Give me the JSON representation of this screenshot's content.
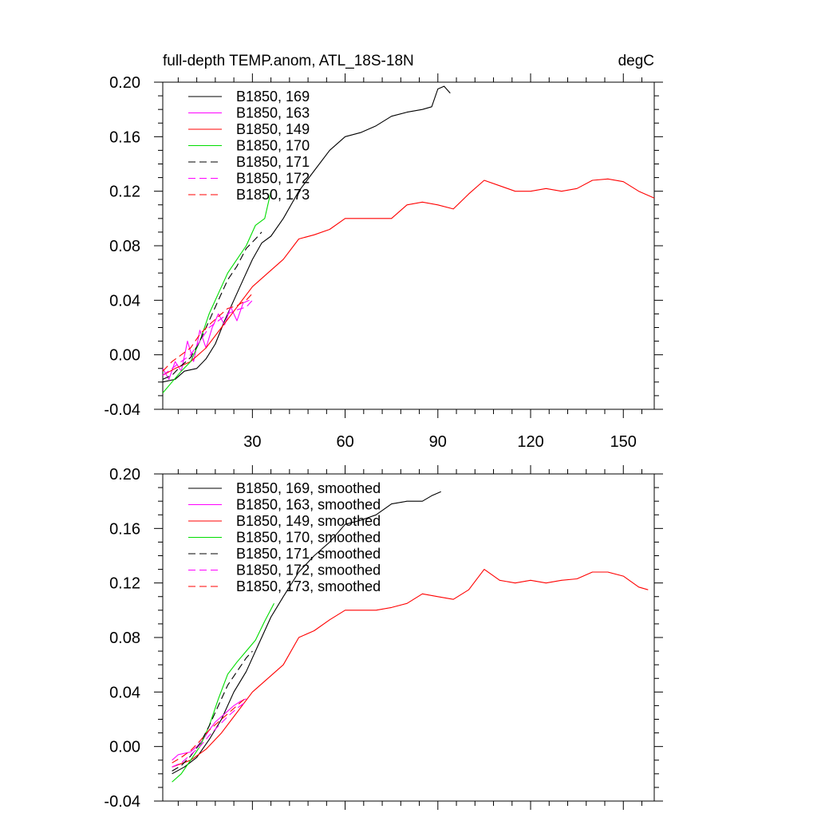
{
  "chart_data": [
    {
      "type": "line",
      "title": "full-depth TEMP.anom, ATL_18S-18N",
      "unit_label": "degC",
      "xlim": [
        1,
        160
      ],
      "ylim": [
        -0.04,
        0.2
      ],
      "x_ticks": [
        30,
        60,
        90,
        120,
        150
      ],
      "x_tick_labels": [
        "30",
        "60",
        "90",
        "120",
        "150"
      ],
      "y_ticks": [
        -0.04,
        0.0,
        0.04,
        0.08,
        0.12,
        0.16,
        0.2
      ],
      "y_tick_labels": [
        "-0.04",
        "0.00",
        "0.04",
        "0.08",
        "0.12",
        "0.16",
        "0.20"
      ],
      "grid": false,
      "legend_position": "top-left",
      "series": [
        {
          "name": "B1850, 169",
          "color": "#000000",
          "dash": "solid",
          "x": [
            1,
            5,
            8,
            12,
            15,
            18,
            21,
            24,
            27,
            30,
            33,
            36,
            40,
            45,
            50,
            55,
            60,
            65,
            70,
            75,
            80,
            85,
            88,
            90,
            92,
            94
          ],
          "y": [
            -0.02,
            -0.018,
            -0.012,
            -0.01,
            -0.003,
            0.008,
            0.025,
            0.04,
            0.055,
            0.07,
            0.082,
            0.087,
            0.1,
            0.12,
            0.135,
            0.15,
            0.16,
            0.163,
            0.168,
            0.175,
            0.178,
            0.18,
            0.182,
            0.195,
            0.197,
            0.192
          ]
        },
        {
          "name": "B1850, 163",
          "color": "#ff00ff",
          "dash": "solid",
          "x": [
            1,
            3,
            5,
            7,
            9,
            11,
            13,
            15,
            17,
            19,
            21,
            23,
            25,
            27,
            29
          ],
          "y": [
            -0.01,
            -0.018,
            -0.005,
            -0.012,
            0.01,
            -0.005,
            0.018,
            0.005,
            0.02,
            0.03,
            0.022,
            0.035,
            0.025,
            0.038,
            0.04
          ]
        },
        {
          "name": "B1850, 149",
          "color": "#ff0000",
          "dash": "solid",
          "x": [
            1,
            5,
            10,
            15,
            20,
            25,
            30,
            35,
            40,
            45,
            50,
            55,
            60,
            65,
            70,
            75,
            80,
            85,
            90,
            95,
            100,
            105,
            110,
            115,
            120,
            125,
            130,
            135,
            140,
            145,
            150,
            155,
            160
          ],
          "y": [
            -0.015,
            -0.01,
            -0.005,
            0.005,
            0.02,
            0.035,
            0.05,
            0.06,
            0.07,
            0.085,
            0.088,
            0.092,
            0.1,
            0.1,
            0.1,
            0.1,
            0.11,
            0.112,
            0.11,
            0.107,
            0.118,
            0.128,
            0.124,
            0.12,
            0.12,
            0.122,
            0.12,
            0.122,
            0.128,
            0.129,
            0.127,
            0.12,
            0.115
          ]
        },
        {
          "name": "B1850, 170",
          "color": "#00dd00",
          "dash": "solid",
          "x": [
            1,
            4,
            7,
            10,
            13,
            16,
            19,
            22,
            25,
            28,
            31,
            34,
            36
          ],
          "y": [
            -0.028,
            -0.02,
            -0.012,
            -0.005,
            0.01,
            0.03,
            0.045,
            0.06,
            0.07,
            0.08,
            0.095,
            0.1,
            0.12
          ]
        },
        {
          "name": "B1850, 171",
          "color": "#000000",
          "dash": "dashed",
          "x": [
            1,
            4,
            7,
            10,
            13,
            16,
            19,
            22,
            25,
            28,
            31,
            33
          ],
          "y": [
            -0.018,
            -0.015,
            -0.008,
            -0.002,
            0.01,
            0.025,
            0.04,
            0.055,
            0.065,
            0.078,
            0.085,
            0.09
          ]
        },
        {
          "name": "B1850, 172",
          "color": "#ff00ff",
          "dash": "dashed",
          "x": [
            1,
            4,
            7,
            10,
            13,
            16,
            19,
            22,
            25,
            28,
            30
          ],
          "y": [
            -0.015,
            -0.01,
            -0.005,
            0.0,
            0.01,
            0.02,
            0.025,
            0.03,
            0.033,
            0.035,
            0.04
          ]
        },
        {
          "name": "B1850, 173",
          "color": "#ff0000",
          "dash": "dashed",
          "x": [
            1,
            4,
            7,
            10,
            13,
            16,
            19,
            22,
            25,
            28,
            30
          ],
          "y": [
            -0.012,
            -0.005,
            0.0,
            0.005,
            0.015,
            0.022,
            0.028,
            0.034,
            0.036,
            0.04,
            0.045
          ]
        }
      ]
    },
    {
      "type": "line",
      "title": "",
      "xlim": [
        1,
        160
      ],
      "ylim": [
        -0.04,
        0.2
      ],
      "x_ticks": [
        30,
        60,
        90,
        120,
        150
      ],
      "x_tick_labels": [],
      "y_ticks": [
        -0.04,
        0.0,
        0.04,
        0.08,
        0.12,
        0.16,
        0.2
      ],
      "y_tick_labels": [
        "-0.04",
        "0.00",
        "0.04",
        "0.08",
        "0.12",
        "0.16",
        "0.20"
      ],
      "grid": false,
      "legend_position": "top-left",
      "series": [
        {
          "name": "B1850, 169, smoothed",
          "color": "#000000",
          "dash": "solid",
          "x": [
            4,
            8,
            12,
            16,
            20,
            24,
            28,
            32,
            36,
            40,
            45,
            50,
            55,
            60,
            65,
            70,
            75,
            80,
            85,
            88,
            91
          ],
          "y": [
            -0.02,
            -0.015,
            -0.008,
            0.005,
            0.02,
            0.04,
            0.055,
            0.075,
            0.095,
            0.11,
            0.128,
            0.14,
            0.15,
            0.163,
            0.166,
            0.17,
            0.178,
            0.18,
            0.18,
            0.184,
            0.187
          ]
        },
        {
          "name": "B1850, 163, smoothed",
          "color": "#ff00ff",
          "dash": "solid",
          "x": [
            4,
            6,
            8,
            10,
            12,
            14,
            16,
            18,
            20,
            22,
            24,
            26,
            28
          ],
          "y": [
            -0.01,
            -0.006,
            -0.005,
            -0.004,
            0.0,
            0.005,
            0.012,
            0.018,
            0.022,
            0.026,
            0.03,
            0.033,
            0.035
          ]
        },
        {
          "name": "B1850, 149, smoothed",
          "color": "#ff0000",
          "dash": "solid",
          "x": [
            4,
            10,
            15,
            20,
            25,
            30,
            35,
            40,
            45,
            50,
            55,
            60,
            65,
            70,
            75,
            80,
            85,
            90,
            95,
            100,
            105,
            110,
            115,
            120,
            125,
            130,
            135,
            140,
            145,
            150,
            155,
            158
          ],
          "y": [
            -0.015,
            -0.01,
            -0.002,
            0.01,
            0.025,
            0.04,
            0.05,
            0.06,
            0.08,
            0.085,
            0.093,
            0.1,
            0.1,
            0.1,
            0.102,
            0.105,
            0.112,
            0.11,
            0.108,
            0.115,
            0.13,
            0.122,
            0.12,
            0.122,
            0.12,
            0.122,
            0.123,
            0.128,
            0.128,
            0.125,
            0.117,
            0.115
          ]
        },
        {
          "name": "B1850, 170, smoothed",
          "color": "#00dd00",
          "dash": "solid",
          "x": [
            4,
            7,
            10,
            13,
            16,
            19,
            22,
            25,
            28,
            31,
            34,
            37
          ],
          "y": [
            -0.026,
            -0.02,
            -0.01,
            0.0,
            0.015,
            0.035,
            0.053,
            0.062,
            0.07,
            0.078,
            0.092,
            0.105
          ]
        },
        {
          "name": "B1850, 171, smoothed",
          "color": "#000000",
          "dash": "dashed",
          "x": [
            4,
            7,
            10,
            13,
            16,
            19,
            22,
            25,
            28,
            30
          ],
          "y": [
            -0.018,
            -0.014,
            -0.007,
            0.002,
            0.015,
            0.03,
            0.045,
            0.055,
            0.065,
            0.07
          ]
        },
        {
          "name": "B1850, 172, smoothed",
          "color": "#ff00ff",
          "dash": "dashed",
          "x": [
            4,
            7,
            10,
            13,
            16,
            19,
            22,
            25,
            28
          ],
          "y": [
            -0.015,
            -0.012,
            -0.006,
            0.0,
            0.008,
            0.015,
            0.022,
            0.028,
            0.033
          ]
        },
        {
          "name": "B1850, 173, smoothed",
          "color": "#ff0000",
          "dash": "dashed",
          "x": [
            4,
            7,
            10,
            13,
            16,
            19,
            22,
            25,
            28
          ],
          "y": [
            -0.012,
            -0.008,
            -0.003,
            0.004,
            0.012,
            0.018,
            0.024,
            0.03,
            0.036
          ]
        }
      ]
    }
  ]
}
